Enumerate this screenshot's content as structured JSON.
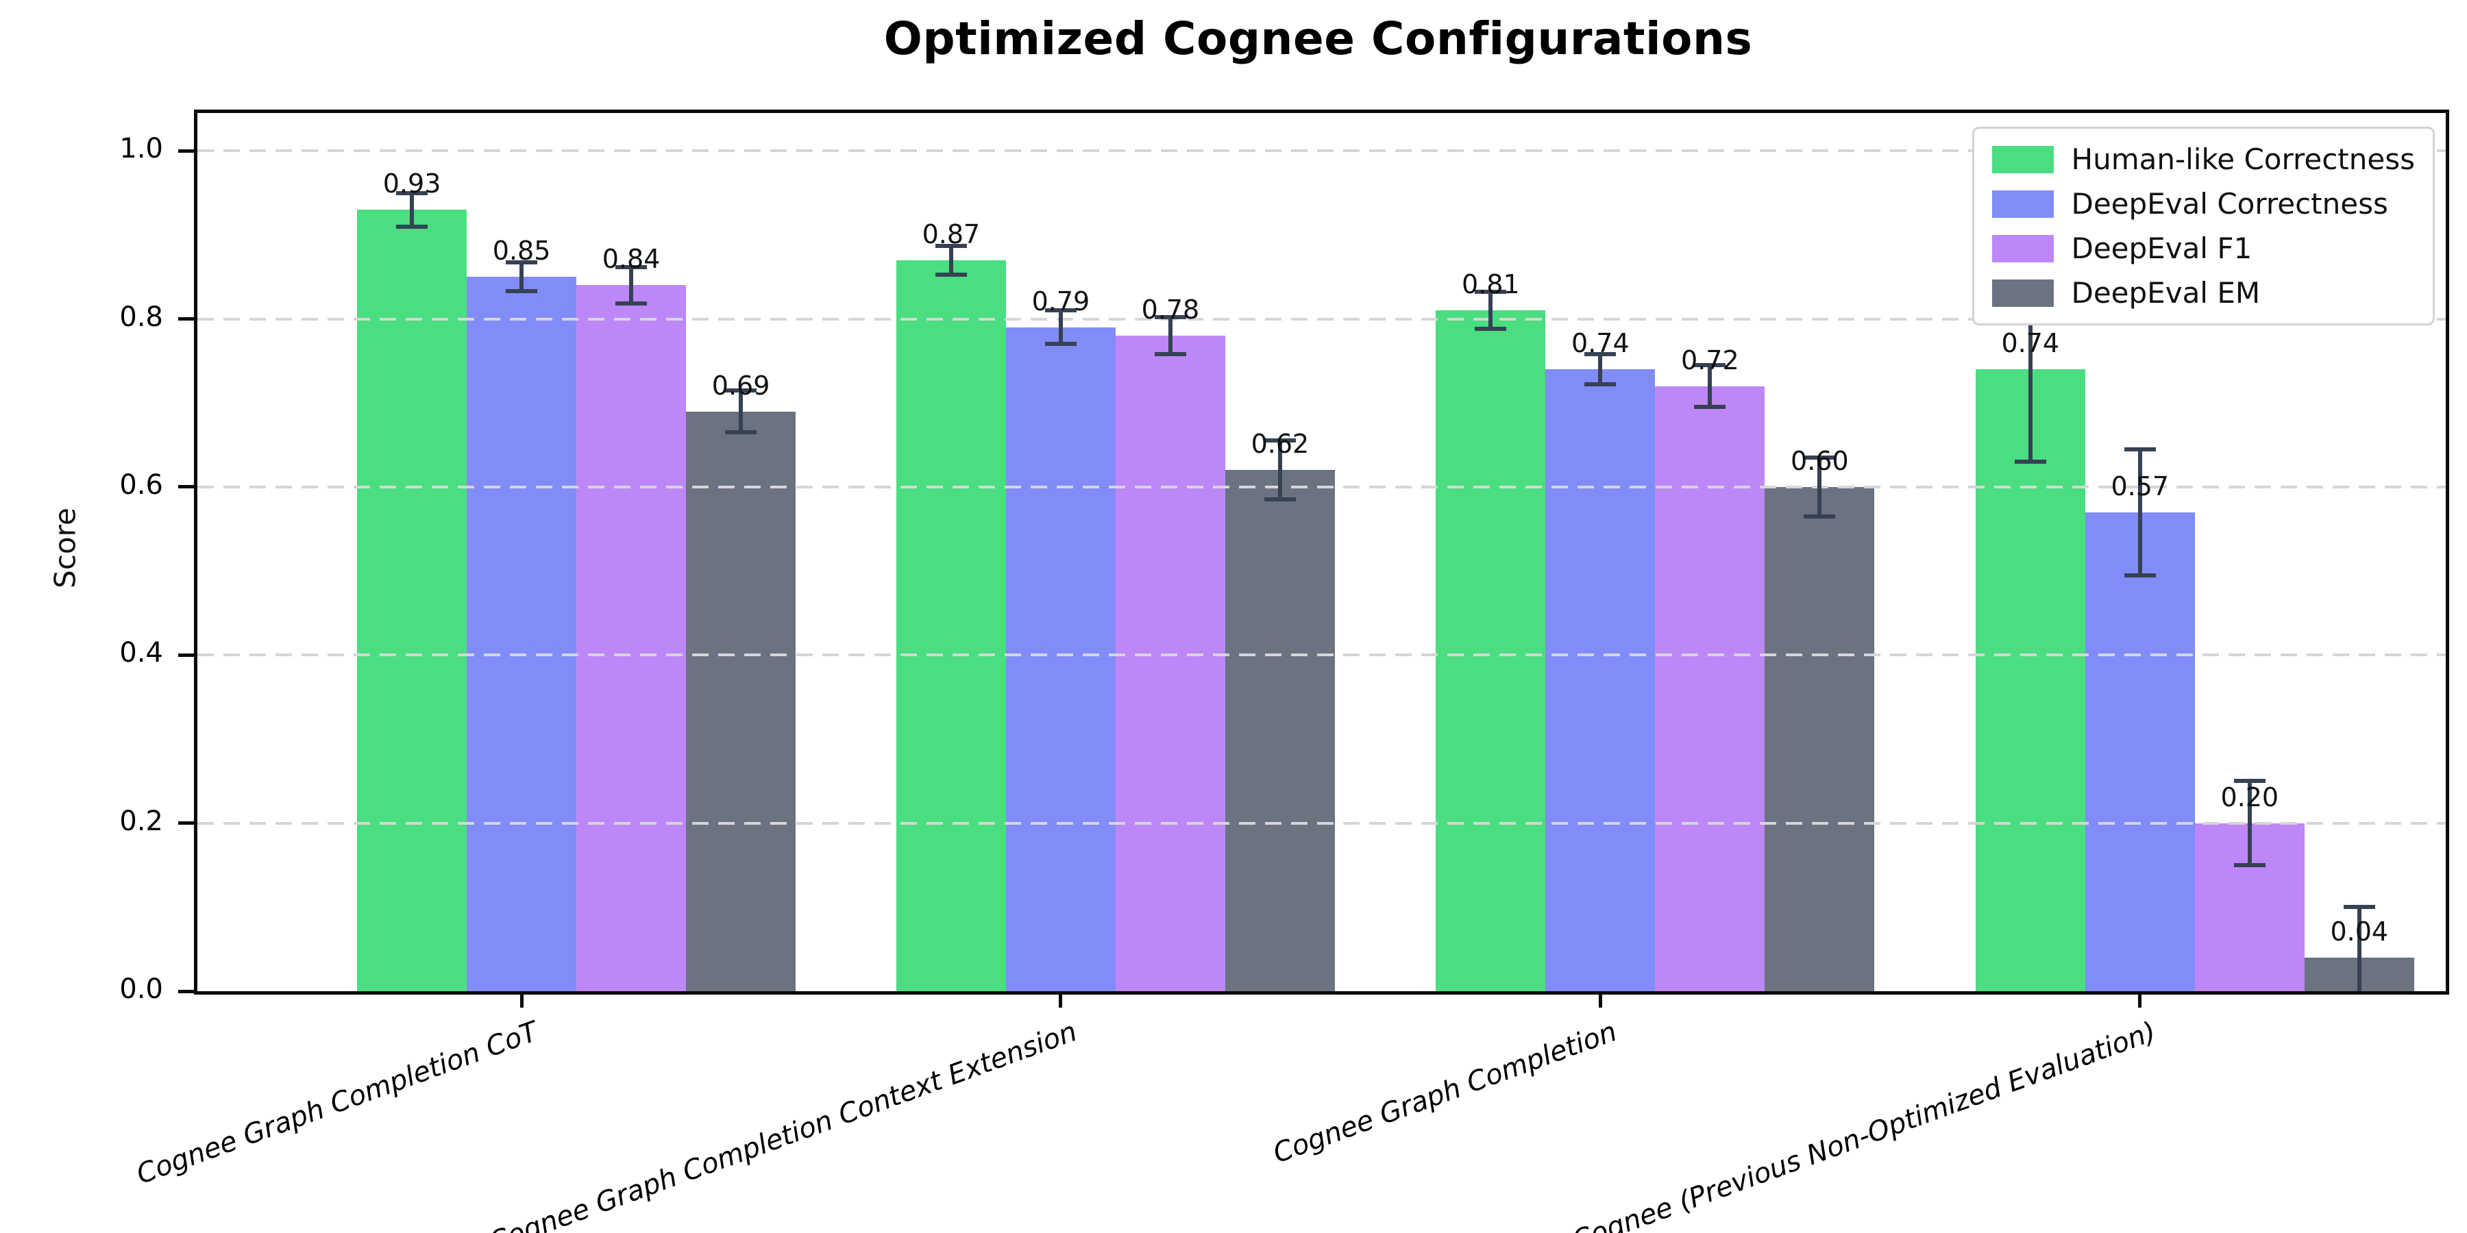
{
  "figure": {
    "background": "#ffffff"
  },
  "chart_data": {
    "type": "bar",
    "title": "Optimized Cognee Configurations",
    "xlabel": "",
    "ylabel": "Score",
    "categories": [
      "Cognee Graph Completion CoT",
      "Cognee Graph Completion Context Extension",
      "Cognee Graph Completion",
      "Cognee (Previous Non-Optimized Evaluation)"
    ],
    "series": [
      {
        "name": "Human-like Correctness",
        "color": "#4ade80",
        "values": [
          0.93,
          0.87,
          0.81,
          0.74
        ],
        "errors": [
          0.02,
          0.017,
          0.022,
          0.11
        ],
        "value_labels": [
          "0.93",
          "0.87",
          "0.81",
          "0.74"
        ]
      },
      {
        "name": "DeepEval Correctness",
        "color": "#818cf8",
        "values": [
          0.85,
          0.79,
          0.74,
          0.57
        ],
        "errors": [
          0.017,
          0.02,
          0.018,
          0.075
        ],
        "value_labels": [
          "0.85",
          "0.79",
          "0.74",
          "0.57"
        ]
      },
      {
        "name": "DeepEval F1",
        "color": "#bd87f8",
        "values": [
          0.84,
          0.78,
          0.72,
          0.2
        ],
        "errors": [
          0.022,
          0.022,
          0.025,
          0.05
        ],
        "value_labels": [
          "0.84",
          "0.78",
          "0.72",
          "0.20"
        ]
      },
      {
        "name": "DeepEval EM",
        "color": "#6b7280",
        "values": [
          0.69,
          0.62,
          0.6,
          0.04
        ],
        "errors": [
          0.025,
          0.035,
          0.035,
          0.06
        ],
        "value_labels": [
          "0.69",
          "0.62",
          "0.60",
          "0.04"
        ]
      }
    ],
    "yticks": [
      0.0,
      0.2,
      0.4,
      0.6,
      0.8,
      1.0
    ],
    "ytick_labels": [
      "0.0",
      "0.2",
      "0.4",
      "0.6",
      "0.8",
      "1.0"
    ],
    "ylim": [
      0,
      1.045
    ],
    "grid": {
      "axis": "y",
      "style": "dashed",
      "color": "#d6d6d6"
    },
    "legend": {
      "position": "upper right"
    },
    "error_bar_color": "#364153",
    "axis_color": "#0b0b0b"
  }
}
